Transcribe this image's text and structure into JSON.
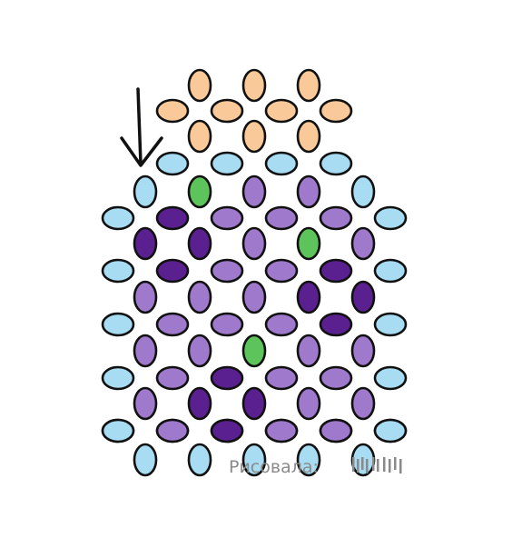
{
  "colors": {
    "peach": "#F9C99A",
    "light_blue": "#A8DCF3",
    "lavender": "#9E79CC",
    "dark_purple": "#5B2090",
    "green": "#5DC45B",
    "outline": "#111111",
    "watermark": "#8a8a8a"
  },
  "pattern": {
    "vertical_rows": [
      {
        "col": 3,
        "beads": [
          "peach"
        ]
      },
      {
        "col": 5,
        "beads": [
          "peach"
        ]
      },
      {
        "col": 7,
        "beads": [
          "peach"
        ]
      },
      {
        "col": 3,
        "beads": [
          "peach"
        ]
      },
      {
        "col": 5,
        "beads": [
          "peach"
        ]
      },
      {
        "col": 7,
        "beads": [
          "peach"
        ]
      },
      {
        "col": 1,
        "beads": [
          "light_blue",
          "lavender",
          "lavender",
          "lavender",
          "light_blue"
        ]
      },
      {
        "col": 3,
        "beads": [
          "green",
          "lavender",
          "lavender",
          "lavender",
          "light_blue"
        ]
      },
      {
        "col": 5,
        "beads": [
          "lavender",
          "lavender",
          "lavender",
          "lavender",
          "light_blue"
        ]
      },
      {
        "col": 7,
        "beads": [
          "lavender",
          "green",
          "lavender",
          "lavender",
          "light_blue"
        ]
      },
      {
        "col": 9,
        "beads": [
          "light_blue",
          "lavender",
          "lavender",
          "lavender",
          "light_blue"
        ]
      }
    ],
    "horizontal_rows": [
      {
        "beads": [
          "peach",
          "peach",
          "peach",
          "peach"
        ]
      },
      {
        "beads": [
          "light_blue",
          "light_blue",
          "light_blue",
          "light_blue"
        ]
      },
      {
        "beads": [
          "light_blue",
          "dark_purple",
          "lavender",
          "lavender",
          "lavender",
          "light_blue"
        ]
      },
      {
        "beads": [
          "light_blue",
          "dark_purple",
          "lavender",
          "lavender",
          "dark_purple",
          "light_blue"
        ]
      },
      {
        "beads": [
          "light_blue",
          "lavender",
          "lavender",
          "lavender",
          "dark_purple",
          "light_blue"
        ]
      },
      {
        "beads": [
          "light_blue",
          "lavender",
          "dark_purple",
          "lavender",
          "lavender",
          "light_blue"
        ]
      },
      {
        "beads": [
          "light_blue",
          "lavender",
          "dark_purple",
          "lavender",
          "lavender",
          "light_blue"
        ]
      }
    ],
    "vertical_overrides": [
      {
        "col": 0,
        "row": 1,
        "color": "dark_purple"
      },
      {
        "col": 2,
        "row": 1,
        "color": "dark_purple"
      },
      {
        "col": 6,
        "row": 2,
        "color": "dark_purple"
      },
      {
        "col": 7,
        "row": 2,
        "color": "dark_purple"
      },
      {
        "col": 2,
        "row": 4,
        "color": "dark_purple"
      },
      {
        "col": 3,
        "row": 4,
        "color": "dark_purple"
      }
    ]
  },
  "direction_arrow": {
    "icon": "down-arrow-icon"
  },
  "watermark": {
    "text": "Рисовала:"
  }
}
